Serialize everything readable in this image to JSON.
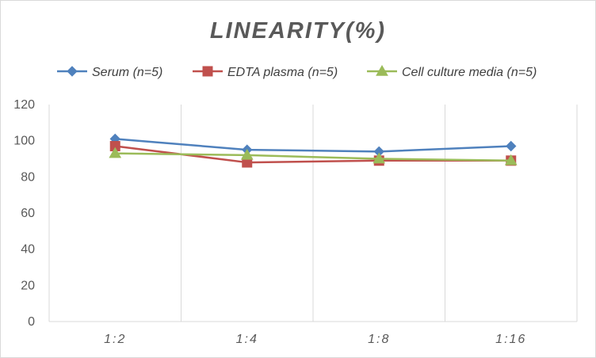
{
  "chart_data": {
    "type": "line",
    "title": "LINEARITY(%)",
    "xlabel": "",
    "ylabel": "",
    "categories": [
      "1:2",
      "1:4",
      "1:8",
      "1:16"
    ],
    "ylim": [
      0,
      120
    ],
    "yticks": [
      0,
      20,
      40,
      60,
      80,
      100,
      120
    ],
    "grid": "vertical",
    "legend_position": "top",
    "series": [
      {
        "name": "Serum (n=5)",
        "values": [
          101,
          95,
          94,
          97
        ],
        "color": "#4f81bd",
        "marker": "diamond"
      },
      {
        "name": "EDTA plasma (n=5)",
        "values": [
          97,
          88,
          89,
          89
        ],
        "color": "#c0504d",
        "marker": "square"
      },
      {
        "name": "Cell culture media (n=5)",
        "values": [
          93,
          92,
          90,
          89
        ],
        "color": "#9bbb59",
        "marker": "triangle"
      }
    ]
  }
}
